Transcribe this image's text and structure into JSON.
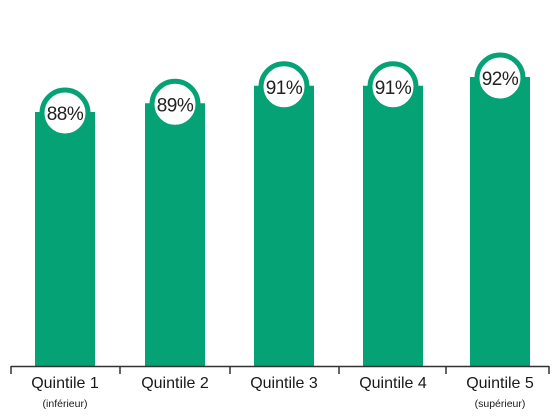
{
  "chart_data": {
    "type": "bar",
    "categories": [
      "Quintile 1",
      "Quintile 2",
      "Quintile 3",
      "Quintile 4",
      "Quintile 5"
    ],
    "category_sublabels": [
      "(inférieur)",
      "",
      "",
      "",
      "(supérieur)"
    ],
    "values": [
      88,
      89,
      91,
      91,
      92
    ],
    "value_labels": [
      "88%",
      "89%",
      "91%",
      "91%",
      "92%"
    ],
    "title": "",
    "xlabel": "",
    "ylabel": "",
    "grid": false,
    "bar_color": "#05a275",
    "badge_fill": "#ffffff",
    "badge_stroke": "#05a275",
    "axis_color": "#333333"
  }
}
